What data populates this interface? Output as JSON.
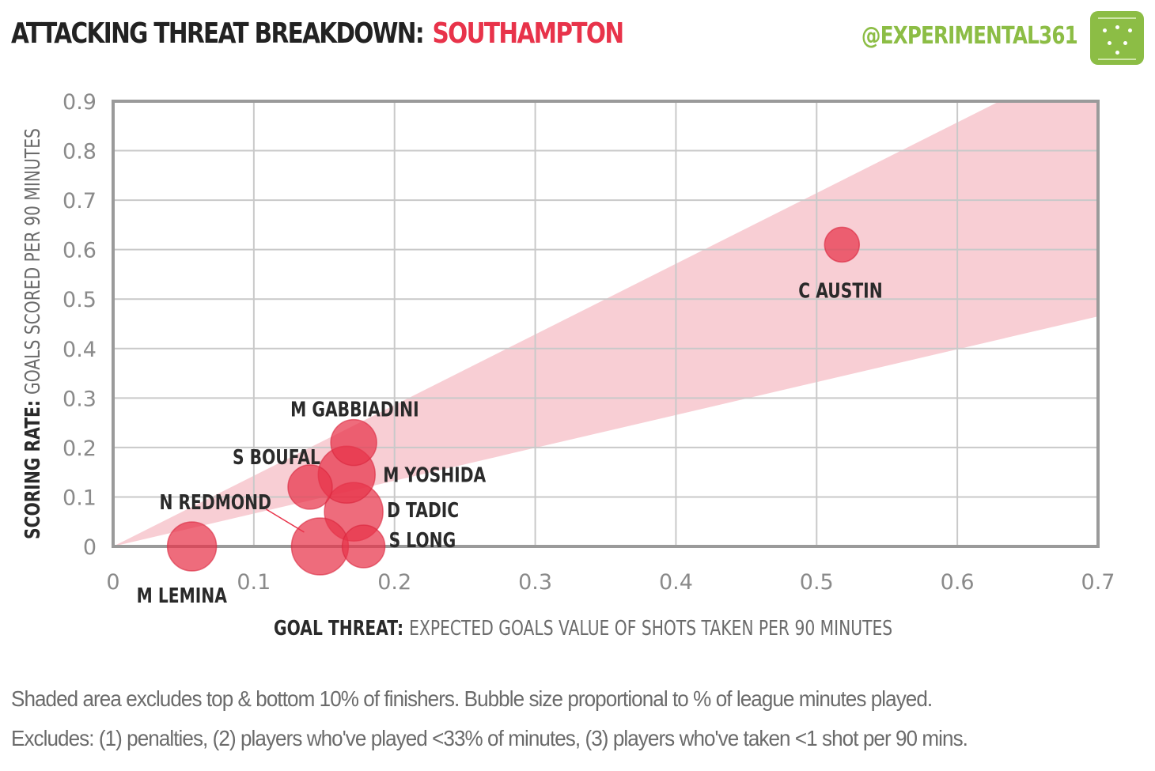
{
  "header": {
    "title_main": "ATTACKING THREAT BREAKDOWN:",
    "title_team": "SOUTHAMPTON",
    "handle": "@EXPERIMENTAL361"
  },
  "footnotes": [
    "Shaded area excludes top & bottom 10% of finishers. Bubble size proportional to % of league minutes played.",
    "Excludes: (1) penalties, (2) players who've played <33% of minutes, (3) players who've taken <1 shot per 90 mins."
  ],
  "colors": {
    "bubble": "#e8334a",
    "band": "#f7c5cd",
    "title_accent": "#e8334a",
    "brand": "#8cbd45"
  },
  "chart_data": {
    "type": "scatter",
    "xlabel_bold": "GOAL THREAT:",
    "xlabel_rest": "EXPECTED GOALS VALUE OF SHOTS TAKEN PER 90 MINUTES",
    "ylabel_bold": "SCORING RATE:",
    "ylabel_rest": "GOALS SCORED PER 90 MINUTES",
    "xlim": [
      0,
      0.7
    ],
    "ylim": [
      0,
      0.9
    ],
    "x_ticks": [
      "0",
      "0.1",
      "0.2",
      "0.3",
      "0.4",
      "0.5",
      "0.6",
      "0.7"
    ],
    "y_ticks": [
      "0",
      "0.1",
      "0.2",
      "0.3",
      "0.4",
      "0.5",
      "0.6",
      "0.7",
      "0.8",
      "0.9"
    ],
    "grid": true,
    "band": {
      "lower_at_xmax": 0.465,
      "upper_at_xmax": 0.9,
      "upper_reaches_top_at_x": 0.63
    },
    "points": [
      {
        "name": "C AUSTIN",
        "x": 0.518,
        "y": 0.61,
        "size": 22
      },
      {
        "name": "M GABBIADINI",
        "x": 0.171,
        "y": 0.21,
        "size": 29
      },
      {
        "name": "S BOUFAL",
        "x": 0.14,
        "y": 0.12,
        "size": 28
      },
      {
        "name": "M YOSHIDA",
        "x": 0.166,
        "y": 0.145,
        "size": 36
      },
      {
        "name": "D TADIC",
        "x": 0.171,
        "y": 0.07,
        "size": 37
      },
      {
        "name": "N REDMOND",
        "x": 0.147,
        "y": 0.0,
        "size": 36
      },
      {
        "name": "S LONG",
        "x": 0.178,
        "y": 0.0,
        "size": 27
      },
      {
        "name": "M LEMINA",
        "x": 0.056,
        "y": 0.0,
        "size": 31
      }
    ]
  }
}
